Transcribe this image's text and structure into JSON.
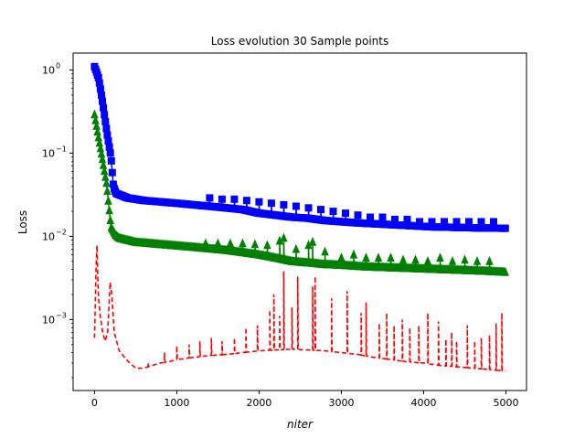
{
  "chart_data": {
    "type": "line",
    "title": "Loss evolution 30 Sample points",
    "xlabel": "niter",
    "ylabel": "Loss",
    "xlim": [
      -260,
      5250
    ],
    "ylim": [
      0.00014,
      1.6
    ],
    "yscale": "log",
    "grid": false,
    "legend": "none",
    "x_ticks": [
      0,
      1000,
      2000,
      3000,
      4000,
      5000
    ],
    "x_tick_labels": [
      "0",
      "1000",
      "2000",
      "3000",
      "4000",
      "5000"
    ],
    "y_ticks": [
      0.001,
      0.01,
      0.1,
      1
    ],
    "y_tick_labels": [
      "10",
      "10",
      "10",
      "10"
    ],
    "y_tick_exponents": [
      "−3",
      "−2",
      "−1",
      "0"
    ],
    "series": [
      {
        "color": "#0000ff",
        "marker": "square",
        "linestyle": "solid",
        "points": [
          [
            0,
            1.1
          ],
          [
            50,
            0.8
          ],
          [
            100,
            0.4
          ],
          [
            150,
            0.18
          ],
          [
            200,
            0.09
          ],
          [
            230,
            0.04
          ],
          [
            260,
            0.033
          ],
          [
            400,
            0.029
          ],
          [
            600,
            0.027
          ],
          [
            800,
            0.026
          ],
          [
            1000,
            0.025
          ],
          [
            1200,
            0.024
          ],
          [
            1400,
            0.023
          ],
          [
            1600,
            0.022
          ],
          [
            1800,
            0.021
          ],
          [
            2000,
            0.019
          ],
          [
            2200,
            0.018
          ],
          [
            2400,
            0.017
          ],
          [
            2600,
            0.0165
          ],
          [
            2800,
            0.0155
          ],
          [
            3000,
            0.015
          ],
          [
            3200,
            0.0145
          ],
          [
            3500,
            0.014
          ],
          [
            3800,
            0.0135
          ],
          [
            4100,
            0.013
          ],
          [
            4400,
            0.0128
          ],
          [
            4700,
            0.0126
          ],
          [
            5000,
            0.0125
          ]
        ],
        "spikes": [
          [
            1400,
            0.029
          ],
          [
            1550,
            0.028
          ],
          [
            1700,
            0.028
          ],
          [
            1850,
            0.027
          ],
          [
            2000,
            0.026
          ],
          [
            2150,
            0.025
          ],
          [
            2300,
            0.024
          ],
          [
            2450,
            0.023
          ],
          [
            2600,
            0.022
          ],
          [
            2750,
            0.021
          ],
          [
            2900,
            0.02
          ],
          [
            3050,
            0.019
          ],
          [
            3200,
            0.018
          ],
          [
            3350,
            0.017
          ],
          [
            3500,
            0.017
          ],
          [
            3650,
            0.016
          ],
          [
            3800,
            0.016
          ],
          [
            3950,
            0.015
          ],
          [
            4100,
            0.015
          ],
          [
            4250,
            0.015
          ],
          [
            4400,
            0.015
          ],
          [
            4550,
            0.015
          ],
          [
            4700,
            0.015
          ],
          [
            4850,
            0.015
          ]
        ]
      },
      {
        "color": "#008000",
        "marker": "triangle",
        "linestyle": "solid",
        "points": [
          [
            0,
            0.29
          ],
          [
            50,
            0.15
          ],
          [
            100,
            0.08
          ],
          [
            150,
            0.04
          ],
          [
            200,
            0.013
          ],
          [
            250,
            0.0105
          ],
          [
            300,
            0.0095
          ],
          [
            500,
            0.0085
          ],
          [
            800,
            0.008
          ],
          [
            1000,
            0.0077
          ],
          [
            1200,
            0.0074
          ],
          [
            1400,
            0.0071
          ],
          [
            1600,
            0.0068
          ],
          [
            1800,
            0.0064
          ],
          [
            2000,
            0.006
          ],
          [
            2200,
            0.0055
          ],
          [
            2400,
            0.005
          ],
          [
            2600,
            0.0048
          ],
          [
            2800,
            0.0046
          ],
          [
            3000,
            0.0045
          ],
          [
            3300,
            0.0043
          ],
          [
            3600,
            0.0042
          ],
          [
            3900,
            0.0041
          ],
          [
            4200,
            0.004
          ],
          [
            4500,
            0.0039
          ],
          [
            4800,
            0.0038
          ],
          [
            5000,
            0.0037
          ]
        ],
        "spikes": [
          [
            1350,
            0.0082
          ],
          [
            1500,
            0.0082
          ],
          [
            1650,
            0.0082
          ],
          [
            1800,
            0.0082
          ],
          [
            1950,
            0.008
          ],
          [
            2100,
            0.0078
          ],
          [
            2250,
            0.0088
          ],
          [
            2300,
            0.0095
          ],
          [
            2450,
            0.007
          ],
          [
            2600,
            0.0078
          ],
          [
            2650,
            0.0085
          ],
          [
            2800,
            0.0065
          ],
          [
            3000,
            0.0055
          ],
          [
            3150,
            0.006
          ],
          [
            3300,
            0.0055
          ],
          [
            3450,
            0.0055
          ],
          [
            3600,
            0.0055
          ],
          [
            3750,
            0.0052
          ],
          [
            3900,
            0.0052
          ],
          [
            4050,
            0.005
          ],
          [
            4200,
            0.0055
          ],
          [
            4350,
            0.005
          ],
          [
            4500,
            0.0052
          ],
          [
            4650,
            0.005
          ],
          [
            4800,
            0.005
          ]
        ]
      },
      {
        "color": "#ff0000",
        "marker": "none",
        "linestyle": "dashed",
        "points": [
          [
            0,
            0.0006
          ],
          [
            20,
            0.0045
          ],
          [
            30,
            0.0078
          ],
          [
            45,
            0.002
          ],
          [
            70,
            0.0011
          ],
          [
            100,
            0.0007
          ],
          [
            130,
            0.00055
          ],
          [
            160,
            0.0007
          ],
          [
            190,
            0.0028
          ],
          [
            210,
            0.002
          ],
          [
            240,
            0.0007
          ],
          [
            300,
            0.00042
          ],
          [
            400,
            0.00032
          ],
          [
            500,
            0.00026
          ],
          [
            600,
            0.00026
          ],
          [
            700,
            0.00028
          ],
          [
            800,
            0.0003
          ],
          [
            900,
            0.00031
          ],
          [
            1000,
            0.00033
          ],
          [
            1200,
            0.00035
          ],
          [
            1400,
            0.00037
          ],
          [
            1600,
            0.00038
          ],
          [
            1800,
            0.0004
          ],
          [
            2000,
            0.00042
          ],
          [
            2200,
            0.00043
          ],
          [
            2400,
            0.00044
          ],
          [
            2600,
            0.00043
          ],
          [
            2800,
            0.00042
          ],
          [
            3000,
            0.0004
          ],
          [
            3200,
            0.00038
          ],
          [
            3400,
            0.00035
          ],
          [
            3600,
            0.00033
          ],
          [
            3800,
            0.00031
          ],
          [
            4000,
            0.0003
          ],
          [
            4200,
            0.00028
          ],
          [
            4400,
            0.00027
          ],
          [
            4600,
            0.00026
          ],
          [
            4800,
            0.00025
          ],
          [
            5000,
            0.00024
          ]
        ],
        "spikes": [
          [
            650,
            0.0003
          ],
          [
            850,
            0.0004
          ],
          [
            1000,
            0.00048
          ],
          [
            1150,
            0.0005
          ],
          [
            1280,
            0.00055
          ],
          [
            1420,
            0.0006
          ],
          [
            1550,
            0.00055
          ],
          [
            1700,
            0.0006
          ],
          [
            1840,
            0.0008
          ],
          [
            1980,
            0.00085
          ],
          [
            2130,
            0.0013
          ],
          [
            2180,
            0.002
          ],
          [
            2250,
            0.0011
          ],
          [
            2300,
            0.0038
          ],
          [
            2400,
            0.0014
          ],
          [
            2470,
            0.0033
          ],
          [
            2650,
            0.0025
          ],
          [
            2680,
            0.0033
          ],
          [
            2880,
            0.0018
          ],
          [
            3070,
            0.0022
          ],
          [
            3240,
            0.0012
          ],
          [
            3300,
            0.0016
          ],
          [
            3460,
            0.0009
          ],
          [
            3550,
            0.0012
          ],
          [
            3640,
            0.00085
          ],
          [
            3740,
            0.001
          ],
          [
            3830,
            0.0008
          ],
          [
            3940,
            0.00085
          ],
          [
            4050,
            0.0012
          ],
          [
            4180,
            0.00095
          ],
          [
            4270,
            0.00058
          ],
          [
            4340,
            0.0007
          ],
          [
            4400,
            0.00055
          ],
          [
            4530,
            0.00085
          ],
          [
            4620,
            0.00055
          ],
          [
            4700,
            0.0006
          ],
          [
            4800,
            0.00065
          ],
          [
            4880,
            0.0009
          ],
          [
            4950,
            0.0012
          ]
        ]
      }
    ]
  }
}
